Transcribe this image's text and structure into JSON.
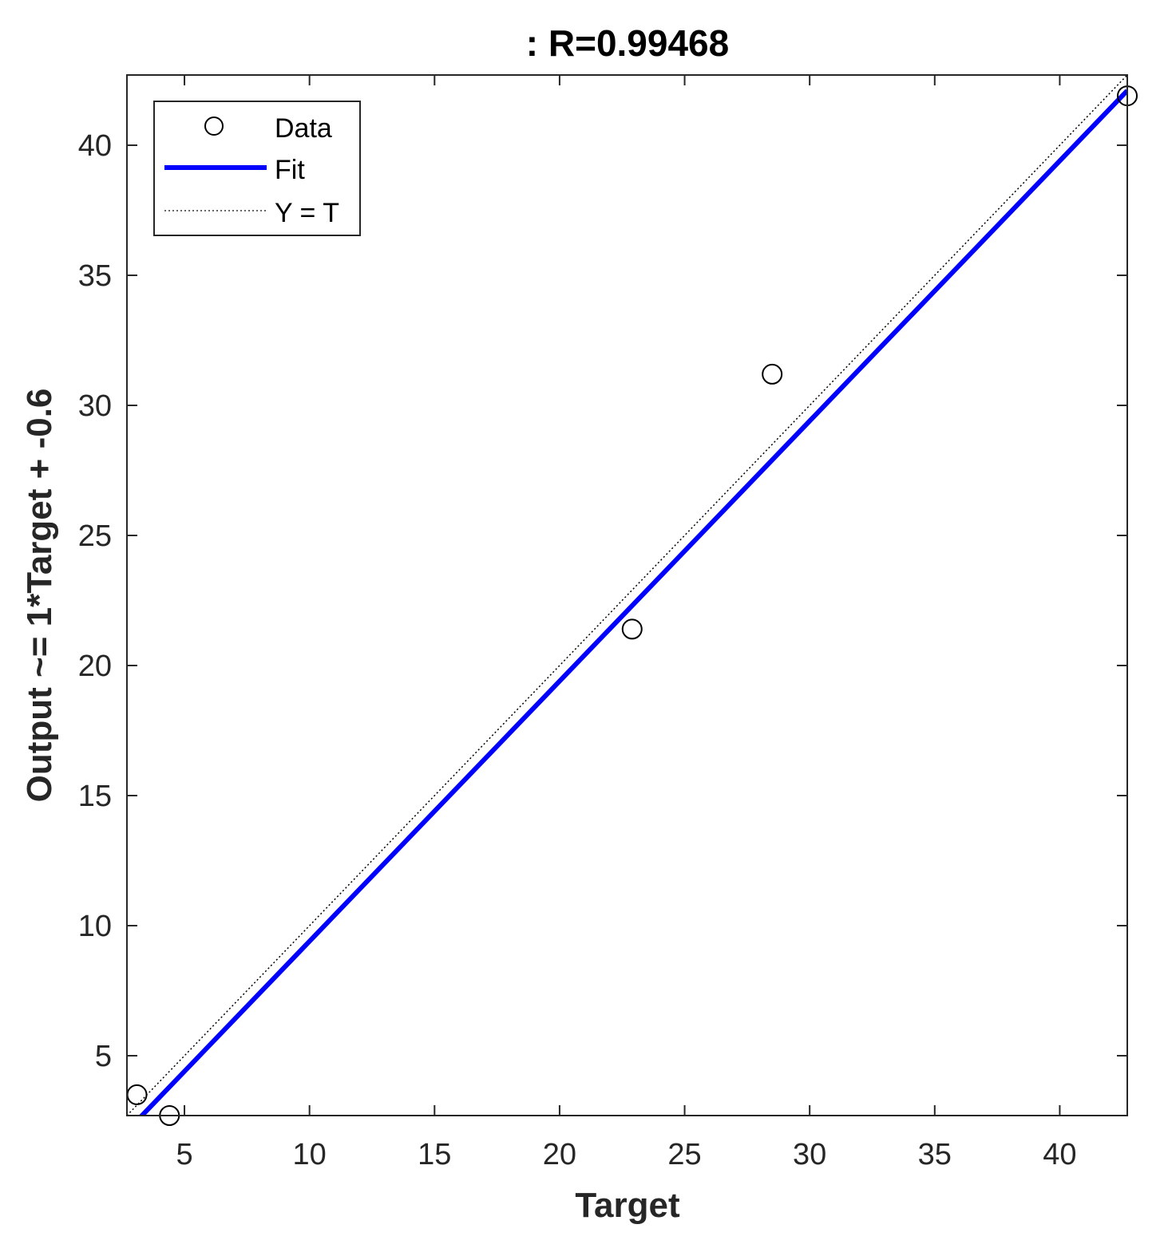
{
  "chart_data": {
    "type": "scatter",
    "title": ": R=0.99468",
    "xlabel": "Target",
    "ylabel": "Output ~= 1*Target + -0.6",
    "xlim": [
      2.7,
      42.7
    ],
    "ylim": [
      2.7,
      42.7
    ],
    "xticks": [
      5,
      10,
      15,
      20,
      25,
      30,
      35,
      40
    ],
    "yticks": [
      5,
      10,
      15,
      20,
      25,
      30,
      35,
      40
    ],
    "grid": false,
    "legend_position": "top-left",
    "series": [
      {
        "name": "Data",
        "kind": "scatter",
        "marker": "circle-open",
        "color": "#000000",
        "points": [
          {
            "x": 3.1,
            "y": 3.5
          },
          {
            "x": 4.4,
            "y": 2.7
          },
          {
            "x": 22.9,
            "y": 21.4
          },
          {
            "x": 28.5,
            "y": 31.2
          },
          {
            "x": 42.7,
            "y": 41.9
          }
        ]
      },
      {
        "name": "Fit",
        "kind": "line",
        "color": "#0000ff",
        "slope": 1,
        "intercept": -0.6
      },
      {
        "name": "Y = T",
        "kind": "line",
        "style": "dotted",
        "color": "#000000",
        "slope": 1,
        "intercept": 0
      }
    ]
  }
}
